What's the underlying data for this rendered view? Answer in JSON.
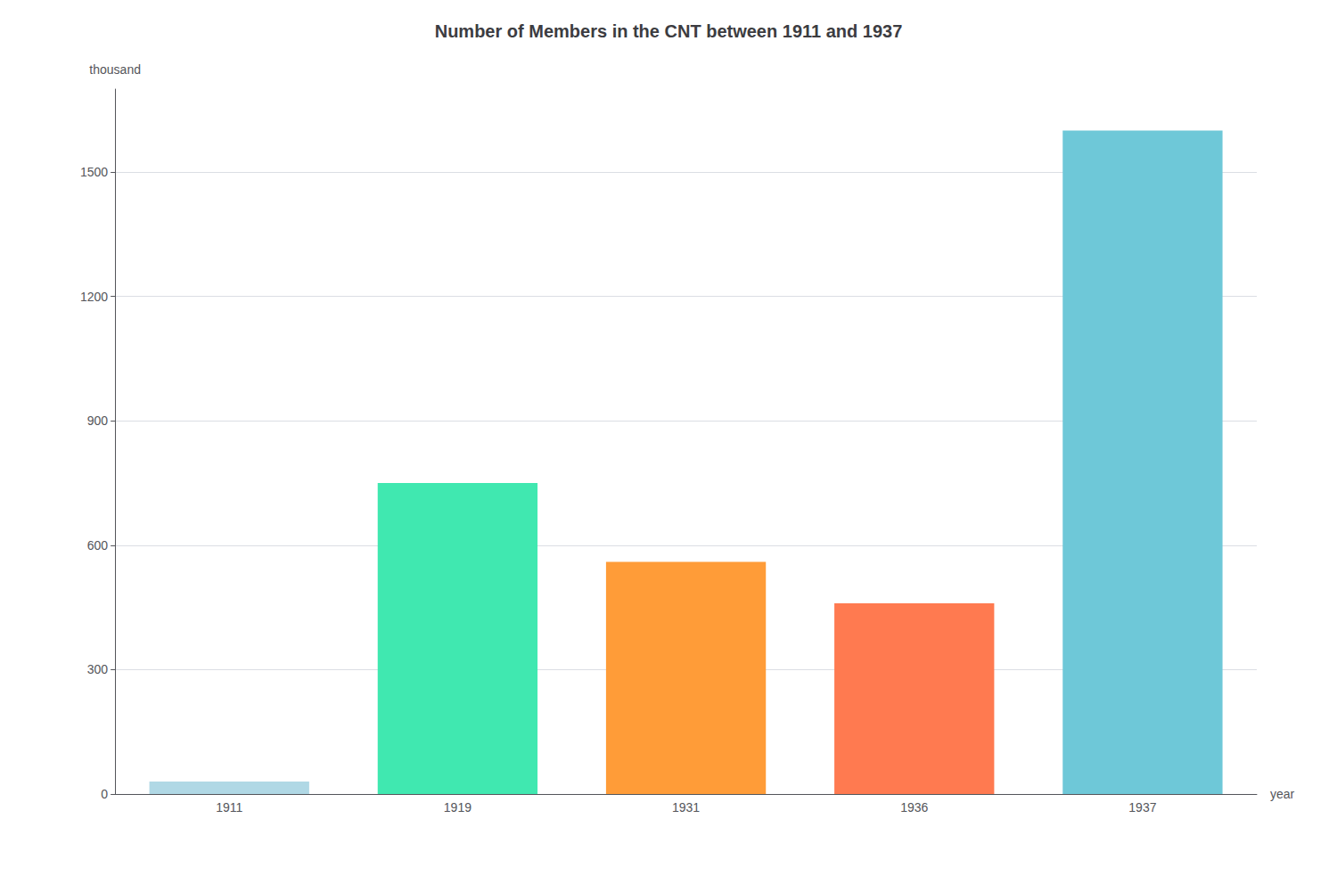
{
  "chart_data": {
    "type": "bar",
    "title": "Number of Members in the CNT between 1911 and 1937",
    "ylabel": "thousand",
    "xlabel": "year",
    "categories": [
      "1911",
      "1919",
      "1931",
      "1936",
      "1937"
    ],
    "values": [
      30,
      750,
      560,
      460,
      1600
    ],
    "colors": [
      "#b0d8e5",
      "#40e8b0",
      "#ff9c38",
      "#ff7a50",
      "#6ec8d8"
    ],
    "ylim": [
      0,
      1700
    ],
    "yticks": [
      0,
      300,
      600,
      900,
      1200,
      1500
    ],
    "grid": true
  }
}
